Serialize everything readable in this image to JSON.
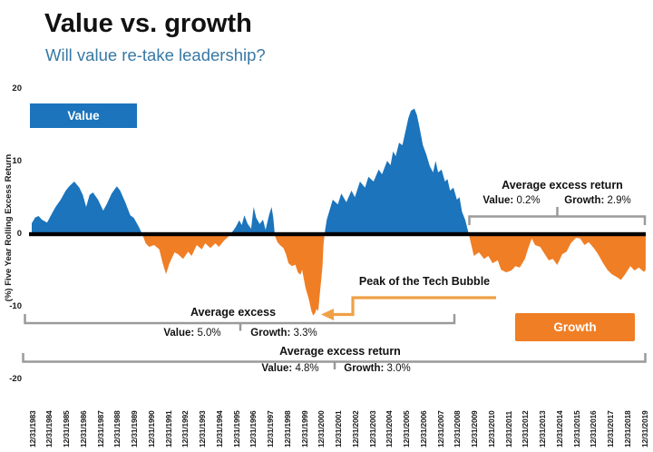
{
  "header": {
    "title": "Value vs. growth",
    "subtitle": "Will value re-take leadership?"
  },
  "colors": {
    "value": "#1B74BC",
    "growth": "#F07E25",
    "subtitle": "#3778A5",
    "bracket": "#9A9A9A",
    "arrow": "#F0A046",
    "zero_line": "#000000"
  },
  "legend": {
    "value_label": "Value",
    "growth_label": "Growth"
  },
  "y_axis": {
    "title": "(%) Five Year Rolling Excess Return",
    "ticks": [
      20,
      10,
      0,
      -10,
      -20
    ]
  },
  "x_axis": {
    "labels": [
      "12/31/1983",
      "12/31/1984",
      "12/31/1985",
      "12/31/1986",
      "12/31/1987",
      "12/31/1988",
      "12/31/1989",
      "12/31/1990",
      "12/31/1991",
      "12/31/1992",
      "12/31/1993",
      "12/31/1994",
      "12/31/1995",
      "12/31/1996",
      "12/31/1997",
      "12/31/1998",
      "12/31/1999",
      "12/31/2000",
      "12/31/2001",
      "12/31/2002",
      "12/31/2003",
      "12/31/2004",
      "12/31/2005",
      "12/31/2006",
      "12/31/2007",
      "12/31/2008",
      "12/31/2009",
      "12/31/2010",
      "12/31/2011",
      "12/31/2012",
      "12/31/2013",
      "12/31/2014",
      "12/31/2015",
      "12/31/2016",
      "12/31/2017",
      "12/31/2018",
      "12/31/2019"
    ]
  },
  "annotations": {
    "tech_bubble": {
      "text": "Peak of the Tech Bubble"
    },
    "bracket_right": {
      "title": "Average excess return",
      "value_label": "Value:",
      "value_pct": "0.2%",
      "growth_label": "Growth:",
      "growth_pct": "2.9%"
    },
    "bracket_mid": {
      "title": "Average excess",
      "value_label": "Value:",
      "value_pct": "5.0%",
      "growth_label": "Growth:",
      "growth_pct": "3.3%"
    },
    "bracket_full": {
      "title": "Average excess return",
      "value_label": "Value:",
      "value_pct": "4.8%",
      "growth_label": "Growth:",
      "growth_pct": "3.0%"
    }
  },
  "chart_data": {
    "type": "area",
    "title": "Value vs. growth",
    "ylabel": "(%) Five Year Rolling Excess Return",
    "ylim": [
      -20,
      20
    ],
    "x_range": [
      1983,
      2019
    ],
    "x_tick_format": "12/31/YYYY yearly, 1983-2019",
    "grid": false,
    "positive_fill": "#1B74BC",
    "positive_meaning": "Value outperforms (Value legend)",
    "negative_fill": "#F07E25",
    "negative_meaning": "Growth outperforms (Growth legend)",
    "annotated_stats": {
      "left_mid_period": {
        "label": "Average excess",
        "value": "5.0%",
        "growth": "3.3%"
      },
      "right_period": {
        "label": "Average excess return",
        "value": "0.2%",
        "growth": "2.9%"
      },
      "full_period": {
        "label": "Average excess return",
        "value": "4.8%",
        "growth": "3.0%"
      },
      "tech_bubble_trough": {
        "label": "Peak of the Tech Bubble",
        "x": 1999.55,
        "y": -11.2
      }
    },
    "series": [
      {
        "name": "Value minus growth, 5-year rolling excess return (%)",
        "points": [
          [
            1983.0,
            1.5
          ],
          [
            1983.2,
            2.3
          ],
          [
            1983.4,
            2.5
          ],
          [
            1983.6,
            2.0
          ],
          [
            1983.9,
            1.6
          ],
          [
            1984.2,
            2.9
          ],
          [
            1984.4,
            3.75
          ],
          [
            1984.7,
            4.75
          ],
          [
            1985.0,
            6.0
          ],
          [
            1985.2,
            6.6
          ],
          [
            1985.5,
            7.25
          ],
          [
            1985.8,
            6.4
          ],
          [
            1986.0,
            5.4
          ],
          [
            1986.2,
            3.75
          ],
          [
            1986.4,
            5.4
          ],
          [
            1986.6,
            5.75
          ],
          [
            1986.9,
            4.75
          ],
          [
            1987.2,
            3.25
          ],
          [
            1987.4,
            4.1
          ],
          [
            1987.7,
            5.6
          ],
          [
            1988.0,
            6.6
          ],
          [
            1988.2,
            6.0
          ],
          [
            1988.5,
            4.4
          ],
          [
            1988.8,
            2.6
          ],
          [
            1989.0,
            2.25
          ],
          [
            1989.3,
            1.0
          ],
          [
            1989.5,
            0.0
          ],
          [
            1989.7,
            -1.25
          ],
          [
            1989.9,
            -1.75
          ],
          [
            1990.2,
            -1.5
          ],
          [
            1990.5,
            -2.1
          ],
          [
            1990.7,
            -4.0
          ],
          [
            1990.9,
            -5.5
          ],
          [
            1991.1,
            -4.0
          ],
          [
            1991.4,
            -2.5
          ],
          [
            1991.6,
            -2.75
          ],
          [
            1991.9,
            -3.4
          ],
          [
            1992.2,
            -2.4
          ],
          [
            1992.4,
            -3.0
          ],
          [
            1992.7,
            -1.5
          ],
          [
            1993.0,
            -2.1
          ],
          [
            1993.2,
            -1.25
          ],
          [
            1993.5,
            -1.9
          ],
          [
            1993.8,
            -1.25
          ],
          [
            1994.0,
            -1.75
          ],
          [
            1994.3,
            -0.9
          ],
          [
            1994.6,
            -0.25
          ],
          [
            1994.85,
            0.5
          ],
          [
            1995.0,
            1.0
          ],
          [
            1995.2,
            1.9
          ],
          [
            1995.35,
            1.25
          ],
          [
            1995.5,
            2.6
          ],
          [
            1995.7,
            1.4
          ],
          [
            1995.9,
            0.75
          ],
          [
            1996.05,
            3.75
          ],
          [
            1996.2,
            2.25
          ],
          [
            1996.4,
            1.4
          ],
          [
            1996.6,
            2.0
          ],
          [
            1996.75,
            0.6
          ],
          [
            1996.95,
            2.6
          ],
          [
            1997.1,
            3.75
          ],
          [
            1997.2,
            2.25
          ],
          [
            1997.3,
            -0.2
          ],
          [
            1997.45,
            -1.1
          ],
          [
            1997.6,
            -1.5
          ],
          [
            1997.8,
            -1.9
          ],
          [
            1997.95,
            -2.75
          ],
          [
            1998.1,
            -4.0
          ],
          [
            1998.3,
            -4.4
          ],
          [
            1998.5,
            -4.2
          ],
          [
            1998.65,
            -5.25
          ],
          [
            1998.8,
            -5.6
          ],
          [
            1998.9,
            -4.9
          ],
          [
            1999.1,
            -7.4
          ],
          [
            1999.3,
            -9.0
          ],
          [
            1999.45,
            -10.6
          ],
          [
            1999.55,
            -11.2
          ],
          [
            1999.65,
            -10.9
          ],
          [
            1999.75,
            -10.3
          ],
          [
            1999.85,
            -10.6
          ],
          [
            1999.95,
            -8.0
          ],
          [
            2000.1,
            -4.4
          ],
          [
            2000.15,
            -1.5
          ],
          [
            2000.25,
            0.5
          ],
          [
            2000.35,
            2.0
          ],
          [
            2000.7,
            4.75
          ],
          [
            2001.0,
            4.1
          ],
          [
            2001.2,
            5.6
          ],
          [
            2001.5,
            4.4
          ],
          [
            2001.8,
            6.0
          ],
          [
            2002.0,
            5.1
          ],
          [
            2002.3,
            7.25
          ],
          [
            2002.6,
            6.4
          ],
          [
            2002.8,
            7.9
          ],
          [
            2003.1,
            7.25
          ],
          [
            2003.4,
            8.9
          ],
          [
            2003.6,
            8.25
          ],
          [
            2003.9,
            10.1
          ],
          [
            2004.1,
            9.5
          ],
          [
            2004.25,
            11.4
          ],
          [
            2004.4,
            10.75
          ],
          [
            2004.6,
            12.6
          ],
          [
            2004.8,
            12.25
          ],
          [
            2005.0,
            14.4
          ],
          [
            2005.15,
            16.0
          ],
          [
            2005.3,
            17.0
          ],
          [
            2005.5,
            17.3
          ],
          [
            2005.65,
            16.4
          ],
          [
            2005.8,
            14.75
          ],
          [
            2006.0,
            12.25
          ],
          [
            2006.2,
            11.0
          ],
          [
            2006.4,
            9.4
          ],
          [
            2006.6,
            8.5
          ],
          [
            2006.75,
            10.1
          ],
          [
            2006.9,
            8.5
          ],
          [
            2007.1,
            8.9
          ],
          [
            2007.3,
            7.25
          ],
          [
            2007.45,
            7.6
          ],
          [
            2007.6,
            6.0
          ],
          [
            2007.8,
            6.4
          ],
          [
            2008.0,
            4.75
          ],
          [
            2008.15,
            5.1
          ],
          [
            2008.3,
            3.1
          ],
          [
            2008.5,
            1.9
          ],
          [
            2008.7,
            0.0
          ],
          [
            2008.85,
            -1.5
          ],
          [
            2009.0,
            -3.0
          ],
          [
            2009.3,
            -2.5
          ],
          [
            2009.6,
            -3.4
          ],
          [
            2009.85,
            -3.0
          ],
          [
            2010.1,
            -4.0
          ],
          [
            2010.4,
            -3.6
          ],
          [
            2010.6,
            -4.9
          ],
          [
            2010.9,
            -5.25
          ],
          [
            2011.2,
            -5.0
          ],
          [
            2011.45,
            -4.4
          ],
          [
            2011.7,
            -4.6
          ],
          [
            2012.0,
            -3.4
          ],
          [
            2012.2,
            -1.9
          ],
          [
            2012.4,
            -0.6
          ],
          [
            2012.6,
            -1.5
          ],
          [
            2012.9,
            -1.75
          ],
          [
            2013.1,
            -2.5
          ],
          [
            2013.4,
            -3.6
          ],
          [
            2013.65,
            -3.4
          ],
          [
            2013.9,
            -4.25
          ],
          [
            2014.2,
            -2.75
          ],
          [
            2014.45,
            -2.4
          ],
          [
            2014.7,
            -1.25
          ],
          [
            2015.0,
            -0.5
          ],
          [
            2015.25,
            -0.6
          ],
          [
            2015.5,
            -1.5
          ],
          [
            2015.75,
            -1.1
          ],
          [
            2016.05,
            -1.9
          ],
          [
            2016.3,
            -2.75
          ],
          [
            2016.6,
            -4.0
          ],
          [
            2016.85,
            -4.9
          ],
          [
            2017.1,
            -5.5
          ],
          [
            2017.4,
            -5.9
          ],
          [
            2017.65,
            -6.3
          ],
          [
            2017.9,
            -5.5
          ],
          [
            2018.2,
            -4.4
          ],
          [
            2018.45,
            -5.0
          ],
          [
            2018.7,
            -4.6
          ],
          [
            2019.0,
            -5.2
          ],
          [
            2019.1,
            -4.9
          ]
        ]
      }
    ]
  }
}
